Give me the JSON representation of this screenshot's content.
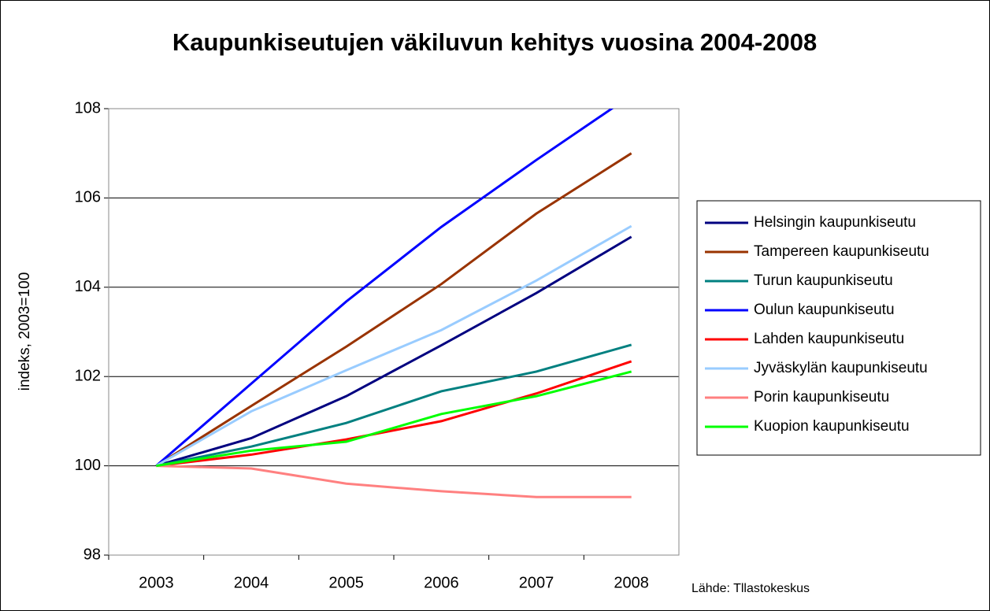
{
  "chart_data": {
    "type": "line",
    "title": "Kaupunkiseutujen väkiluvun kehitys vuosina 2004-2008",
    "y_label": "indeks, 2003=100",
    "source": "Lähde: Tllastokeskus",
    "categories": [
      "2003",
      "2004",
      "2005",
      "2006",
      "2007",
      "2008"
    ],
    "ylim": [
      98,
      108
    ],
    "yticks": [
      98,
      100,
      102,
      104,
      106,
      108
    ],
    "grid": true,
    "series": [
      {
        "name": "Helsingin kaupunkiseutu",
        "color": "#000080",
        "values": [
          100,
          100.62,
          101.56,
          102.7,
          103.87,
          105.13
        ]
      },
      {
        "name": "Tampereen kaupunkiseutu",
        "color": "#993300",
        "values": [
          100,
          101.34,
          102.67,
          104.07,
          105.65,
          107.0
        ]
      },
      {
        "name": "Turun kaupunkiseutu",
        "color": "#008080",
        "values": [
          100,
          100.43,
          100.96,
          101.67,
          102.11,
          102.71
        ]
      },
      {
        "name": "Oulun kaupunkiseutu",
        "color": "#0000ff",
        "values": [
          100,
          101.84,
          103.68,
          105.35,
          106.85,
          108.3
        ]
      },
      {
        "name": "Lahden kaupunkiseutu",
        "color": "#ff0000",
        "values": [
          100,
          100.25,
          100.59,
          101.0,
          101.62,
          102.34
        ]
      },
      {
        "name": "Jyväskylän kaupunkiseutu",
        "color": "#99ccff",
        "values": [
          100,
          101.22,
          102.14,
          103.04,
          104.15,
          105.37
        ]
      },
      {
        "name": "Porin kaupunkiseutu",
        "color": "#ff8080",
        "values": [
          100,
          99.94,
          99.6,
          99.43,
          99.3,
          99.3
        ]
      },
      {
        "name": "Kuopion kaupunkiseutu",
        "color": "#00ff00",
        "values": [
          100,
          100.34,
          100.54,
          101.16,
          101.56,
          102.11
        ]
      }
    ]
  }
}
